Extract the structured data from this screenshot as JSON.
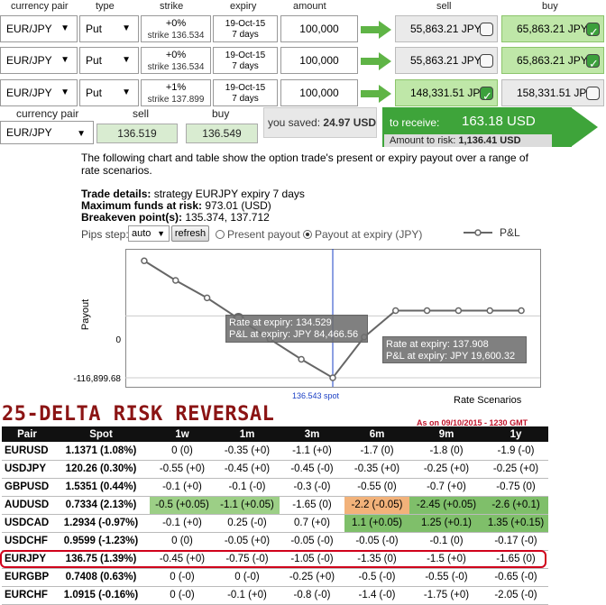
{
  "headers": {
    "pair": "currency pair",
    "type": "type",
    "strike": "strike",
    "expiry": "expiry",
    "amount": "amount",
    "sell": "sell",
    "buy": "buy"
  },
  "rows": [
    {
      "pair": "EUR/JPY",
      "type": "Put",
      "pct": "+0%",
      "strike": "strike 136.534",
      "exp_date": "19-Oct-15",
      "exp_days": "7 days",
      "amount": "100,000",
      "sell": "55,863.21 JPY",
      "buy": "65,863.21 JPY",
      "sell_checked": false,
      "buy_checked": true
    },
    {
      "pair": "EUR/JPY",
      "type": "Put",
      "pct": "+0%",
      "strike": "strike 136.534",
      "exp_date": "19-Oct-15",
      "exp_days": "7 days",
      "amount": "100,000",
      "sell": "55,863.21 JPY",
      "buy": "65,863.21 JPY",
      "sell_checked": false,
      "buy_checked": true
    },
    {
      "pair": "EUR/JPY",
      "type": "Put",
      "pct": "+1%",
      "strike": "strike 137.899",
      "exp_date": "19-Oct-15",
      "exp_days": "7 days",
      "amount": "100,000",
      "sell": "148,331.51 JPY",
      "buy": "158,331.51 JPY",
      "sell_checked": true,
      "buy_checked": false
    }
  ],
  "quote": {
    "pair_label": "currency pair",
    "sell_label": "sell",
    "buy_label": "buy",
    "pair": "EUR/JPY",
    "sell": "136.519",
    "buy": "136.549"
  },
  "savings": {
    "label": "you saved:",
    "value": "24.97 USD"
  },
  "receive": {
    "label": "to receive:",
    "value": "163.18 USD",
    "risk_label": "Amount to risk:",
    "risk_value": "1,136.41 USD"
  },
  "description": "The following chart and table show the option trade's present or expiry payout over a range of rate scenarios.",
  "details": {
    "trade_label": "Trade details:",
    "trade_value": "strategy EURJPY expiry 7 days",
    "funds_label": "Maximum funds at risk:",
    "funds_value": "973.01 (USD)",
    "breakeven_label": "Breakeven point(s):",
    "breakeven_value": "135.374, 137.712"
  },
  "controls": {
    "pips_label": "Pips step:",
    "pips_value": "auto",
    "refresh": "refresh",
    "present": "Present payout",
    "expiry": "Payout at expiry (JPY)",
    "legend": "P&L"
  },
  "chart_data": {
    "type": "line",
    "ylabel": "Payout",
    "xlabel": "Rate Scenarios",
    "y_ticks": [
      "0",
      "-116,899.68"
    ],
    "spot_label": "136.543 spot",
    "series": [
      {
        "name": "P&L",
        "points": [
          [
            0,
            104000
          ],
          [
            1,
            67000
          ],
          [
            2,
            34000
          ],
          [
            3,
            -5000
          ],
          [
            4,
            -44000
          ],
          [
            5,
            -82000
          ],
          [
            6,
            -116899.68
          ],
          [
            7,
            -40000
          ],
          [
            8,
            10000
          ],
          [
            9,
            10000
          ],
          [
            10,
            10000
          ],
          [
            11,
            10000
          ],
          [
            12,
            10000
          ]
        ]
      }
    ],
    "tooltips": [
      {
        "line1": "Rate at expiry: 134.529",
        "line2": "P&L at expiry: JPY 84,466.56"
      },
      {
        "line1": "Rate at expiry: 137.908",
        "line2": "P&L at expiry: JPY 19,600.32"
      }
    ]
  },
  "risk_reversal": {
    "title": "25-DELTA RISK REVERSAL",
    "asof": "As on 09/10/2015 - 1230 GMT",
    "columns": [
      "Pair",
      "Spot",
      "1w",
      "1m",
      "3m",
      "6m",
      "9m",
      "1y"
    ],
    "rows": [
      {
        "pair": "EURUSD",
        "spot": "1.1371 (1.08%)",
        "cells": [
          "0 (0)",
          "-0.35 (+0)",
          "-1.1 (+0)",
          "-1.7 (0)",
          "-1.8 (0)",
          "-1.9 (-0)"
        ]
      },
      {
        "pair": "USDJPY",
        "spot": "120.26 (0.30%)",
        "cells": [
          "-0.55 (+0)",
          "-0.45 (+0)",
          "-0.45 (-0)",
          "-0.35 (+0)",
          "-0.25 (+0)",
          "-0.25 (+0)"
        ]
      },
      {
        "pair": "GBPUSD",
        "spot": "1.5351 (0.44%)",
        "cells": [
          "-0.1 (+0)",
          "-0.1 (-0)",
          "-0.3 (-0)",
          "-0.55 (0)",
          "-0.7 (+0)",
          "-0.75 (0)"
        ]
      },
      {
        "pair": "AUDUSD",
        "spot": "0.7334 (2.13%)",
        "cells": [
          "-0.5 (+0.05)",
          "-1.1 (+0.05)",
          "-1.65 (0)",
          "-2.2 (-0.05)",
          "-2.45 (+0.05)",
          "-2.6 (+0.1)"
        ]
      },
      {
        "pair": "USDCAD",
        "spot": "1.2934 (-0.97%)",
        "cells": [
          "-0.1 (+0)",
          "0.25 (-0)",
          "0.7 (+0)",
          "1.1 (+0.05)",
          "1.25 (+0.1)",
          "1.35 (+0.15)"
        ]
      },
      {
        "pair": "USDCHF",
        "spot": "0.9599 (-1.23%)",
        "cells": [
          "0 (0)",
          "-0.05 (+0)",
          "-0.05 (-0)",
          "-0.05 (-0)",
          "-0.1 (0)",
          "-0.17 (-0)"
        ]
      },
      {
        "pair": "EURJPY",
        "spot": "136.75 (1.39%)",
        "cells": [
          "-0.45 (+0)",
          "-0.75 (-0)",
          "-1.05 (-0)",
          "-1.35 (0)",
          "-1.5 (+0)",
          "-1.65 (0)"
        ]
      },
      {
        "pair": "EURGBP",
        "spot": "0.7408 (0.63%)",
        "cells": [
          "0 (-0)",
          "0 (-0)",
          "-0.25 (+0)",
          "-0.5 (-0)",
          "-0.55 (-0)",
          "-0.65 (-0)"
        ]
      },
      {
        "pair": "EURCHF",
        "spot": "1.0915 (-0.16%)",
        "cells": [
          "0 (-0)",
          "-0.1 (+0)",
          "-0.8 (-0)",
          "-1.4 (-0)",
          "-1.75 (+0)",
          "-2.05 (-0)"
        ]
      }
    ],
    "highlight_colors": {
      "green_light": "#9ccf86",
      "green_mid": "#7fbf6a",
      "orange": "#f2b27a",
      "red_outline": "#d0021b"
    }
  }
}
